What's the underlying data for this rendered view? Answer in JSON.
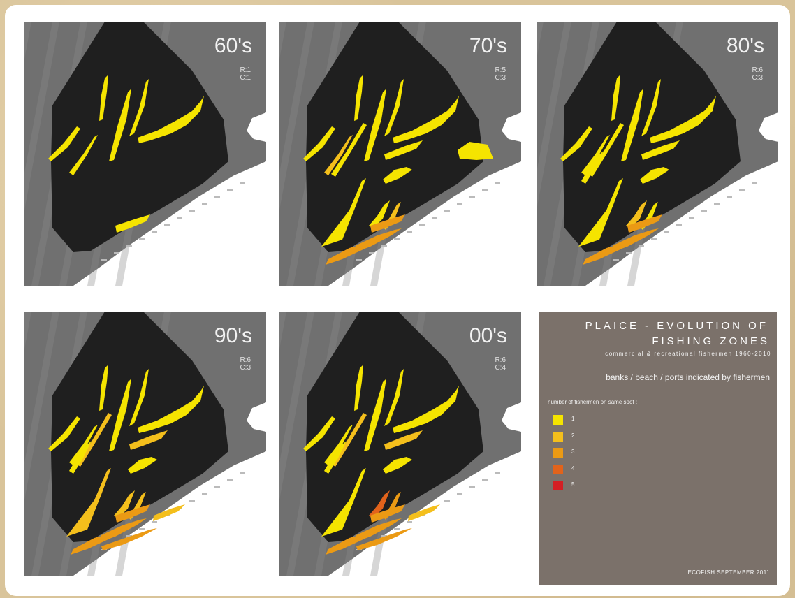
{
  "panels": [
    {
      "decade": "60's",
      "r": "R:1",
      "c": "C:1",
      "level": 1
    },
    {
      "decade": "70's",
      "r": "R:5",
      "c": "C:3",
      "level": 2
    },
    {
      "decade": "80's",
      "r": "R:6",
      "c": "C:3",
      "level": 3
    },
    {
      "decade": "90's",
      "r": "R:6",
      "c": "C:3",
      "level": 4
    },
    {
      "decade": "00's",
      "r": "R:6",
      "c": "C:4",
      "level": 5
    }
  ],
  "legend": {
    "title_line1": "PLAICE - EVOLUTION OF",
    "title_line2": "FISHING ZONES",
    "subtitle": "commercial & recreational fishermen 1960-2010",
    "note": "banks / beach / ports indicated by fishermen",
    "scale_label": "number of fishermen on same spot :",
    "items": [
      {
        "label": "1",
        "color": "#f5e400"
      },
      {
        "label": "2",
        "color": "#f4bf1c"
      },
      {
        "label": "3",
        "color": "#eb9a14"
      },
      {
        "label": "4",
        "color": "#e2631b"
      },
      {
        "label": "5",
        "color": "#d41f24"
      }
    ],
    "footer": "LECOFISH     SEPTEMBER 2011"
  }
}
